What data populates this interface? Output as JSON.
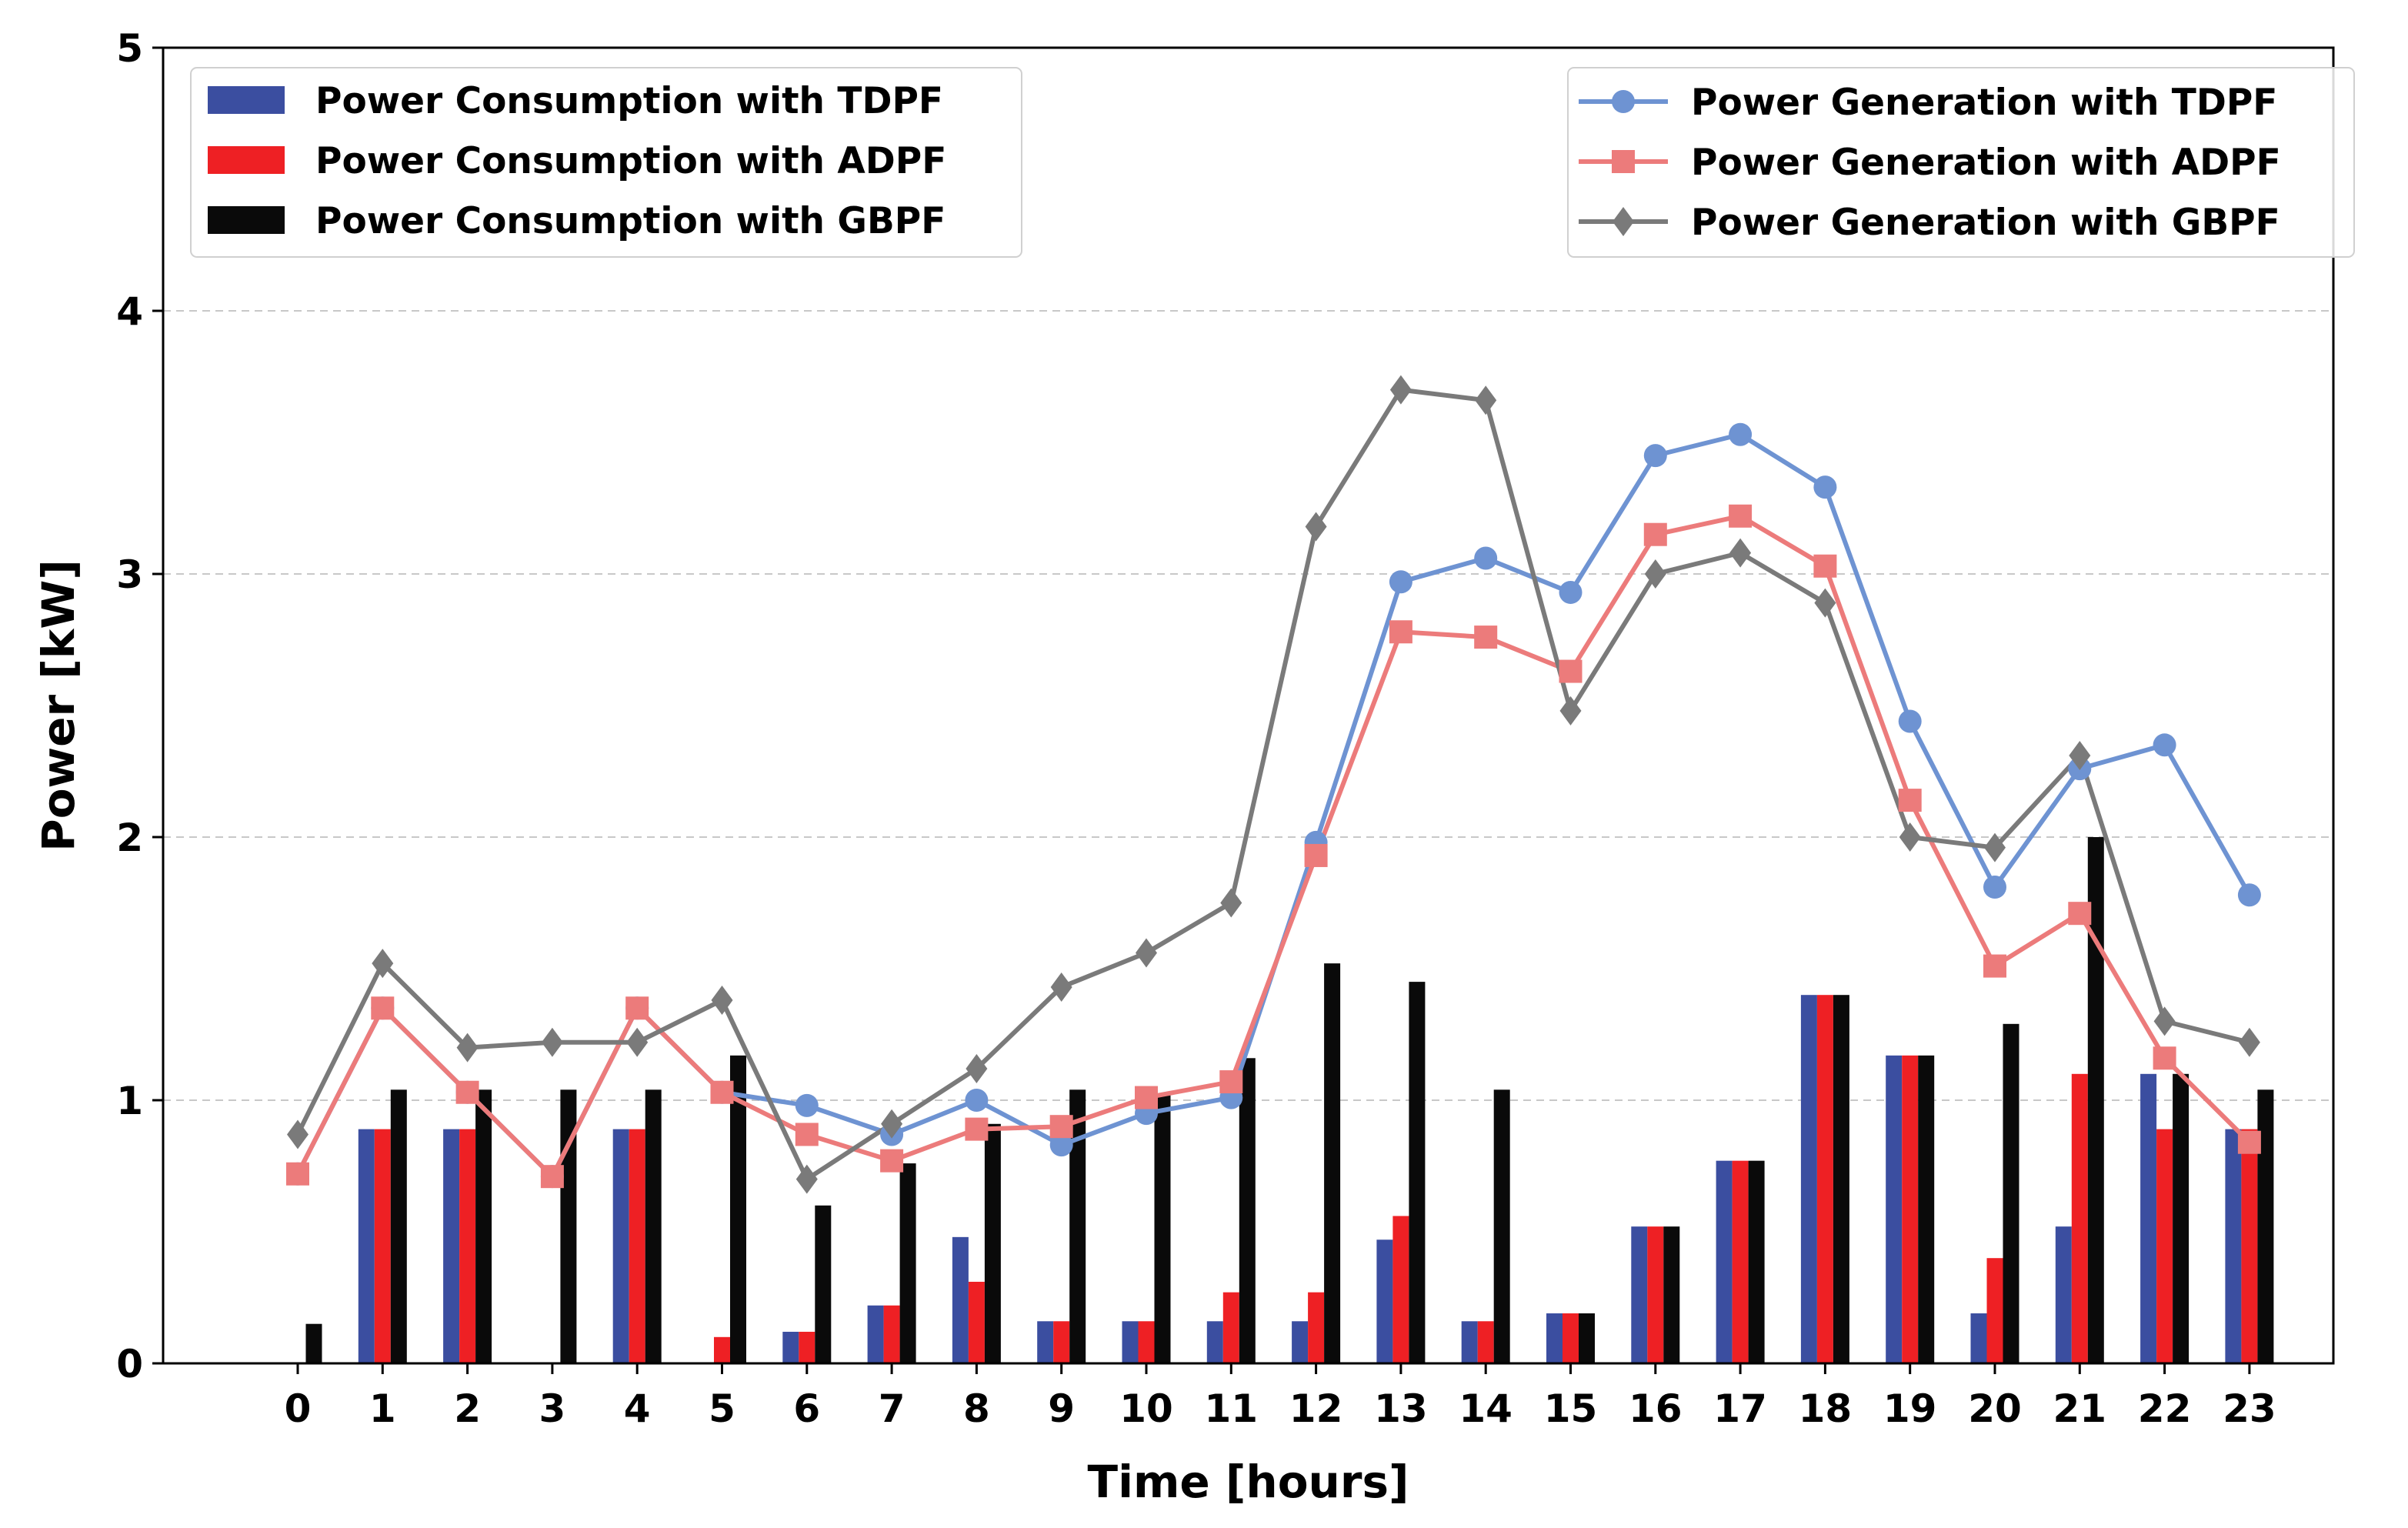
{
  "chart_data": {
    "type": "bar+line",
    "title": "",
    "xlabel": "Time [hours]",
    "ylabel": "Power [kW]",
    "ylim": [
      0,
      5
    ],
    "yticks": [
      "0",
      "1",
      "2",
      "3",
      "4",
      "5"
    ],
    "grid": "horizontal dashed at 1, 2, 3, 4",
    "categories": [
      "0",
      "1",
      "2",
      "3",
      "4",
      "5",
      "6",
      "7",
      "8",
      "9",
      "10",
      "11",
      "12",
      "13",
      "14",
      "15",
      "16",
      "17",
      "18",
      "19",
      "20",
      "21",
      "22",
      "23"
    ],
    "bar_series": [
      {
        "name": "Power Consumption with TDPF",
        "color": "#3B4EA0",
        "values": [
          0,
          0.89,
          0.89,
          0,
          0.89,
          0,
          0.12,
          0.22,
          0.48,
          0.16,
          0.16,
          0.16,
          0.16,
          0.47,
          0.16,
          0.19,
          0.52,
          0.77,
          1.4,
          1.17,
          0.19,
          0.52,
          1.1,
          0.89
        ]
      },
      {
        "name": "Power Consumption with ADPF",
        "color": "#EE2024",
        "values": [
          0,
          0.89,
          0.89,
          0,
          0.89,
          0.1,
          0.12,
          0.22,
          0.31,
          0.16,
          0.16,
          0.27,
          0.27,
          0.56,
          0.16,
          0.19,
          0.52,
          0.77,
          1.4,
          1.17,
          0.4,
          1.1,
          0.89,
          0.89
        ]
      },
      {
        "name": "Power Consumption with GBPF",
        "color": "#0A0A0A",
        "values": [
          0.15,
          1.04,
          1.04,
          1.04,
          1.04,
          1.17,
          0.6,
          0.76,
          0.91,
          1.04,
          1.02,
          1.16,
          1.52,
          1.45,
          1.04,
          0.19,
          0.52,
          0.77,
          1.4,
          1.17,
          1.29,
          2.0,
          1.1,
          1.04
        ]
      }
    ],
    "line_series": [
      {
        "name": "Power Generation with TDPF",
        "color": "#6E93D2",
        "marker": "circle",
        "values": [
          0.72,
          1.35,
          1.03,
          0.71,
          1.35,
          1.03,
          0.98,
          0.87,
          1.0,
          0.83,
          0.95,
          1.01,
          1.98,
          2.97,
          3.06,
          2.93,
          3.45,
          3.53,
          3.33,
          2.44,
          1.81,
          2.26,
          2.35,
          1.78
        ]
      },
      {
        "name": "Power Generation with ADPF",
        "color": "#EC7B7B",
        "marker": "square",
        "values": [
          0.72,
          1.35,
          1.03,
          0.71,
          1.35,
          1.03,
          0.87,
          0.77,
          0.89,
          0.9,
          1.01,
          1.07,
          1.93,
          2.78,
          2.76,
          2.63,
          3.15,
          3.22,
          3.03,
          2.14,
          1.51,
          1.71,
          1.16,
          0.84
        ]
      },
      {
        "name": "Power Generation with GBPF",
        "color": "#7A7A7A",
        "marker": "diamond",
        "values": [
          0.87,
          1.52,
          1.2,
          1.22,
          1.22,
          1.38,
          0.7,
          0.91,
          1.12,
          1.43,
          1.56,
          1.75,
          3.18,
          3.7,
          3.66,
          2.48,
          3.0,
          3.08,
          2.89,
          2.0,
          1.96,
          2.31,
          1.3,
          1.22
        ]
      }
    ],
    "legends": [
      {
        "placement": "top-left",
        "entries": [
          "Power Consumption with TDPF",
          "Power Consumption with ADPF",
          "Power Consumption with GBPF"
        ]
      },
      {
        "placement": "top-right",
        "entries": [
          "Power Generation with TDPF",
          "Power Generation with ADPF",
          "Power Generation with GBPF"
        ]
      }
    ]
  }
}
